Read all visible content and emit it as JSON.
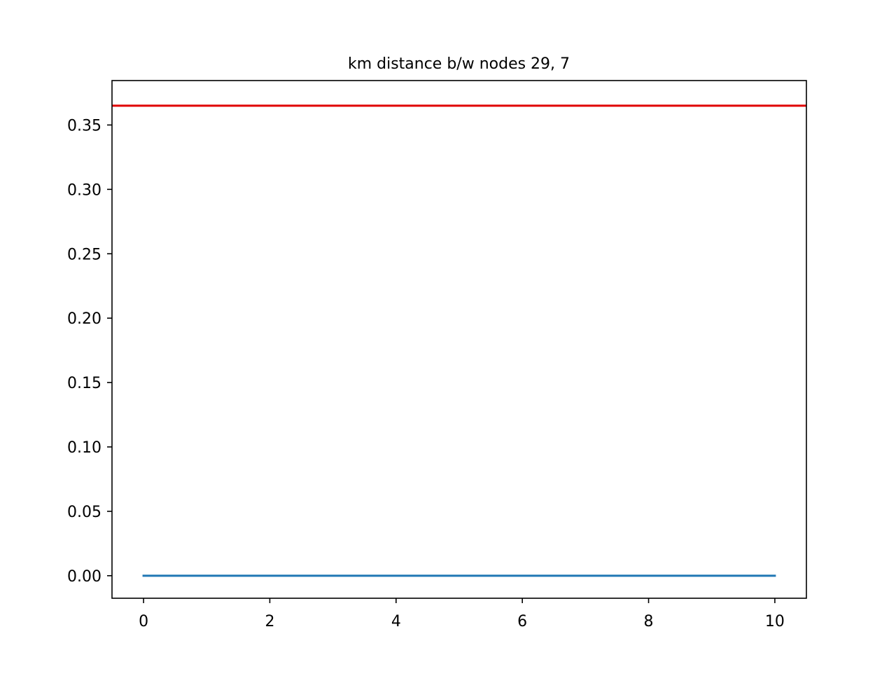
{
  "chart_data": {
    "type": "line",
    "title": "km distance b/w nodes 29, 7",
    "xlabel": "",
    "ylabel": "",
    "xlim": [
      -0.5,
      10.5
    ],
    "ylim": [
      -0.0175,
      0.3845
    ],
    "x_ticks": [
      0,
      2,
      4,
      6,
      8,
      10
    ],
    "x_tick_labels": [
      "0",
      "2",
      "4",
      "6",
      "8",
      "10"
    ],
    "y_ticks": [
      0.0,
      0.05,
      0.1,
      0.15,
      0.2,
      0.25,
      0.3,
      0.35
    ],
    "y_tick_labels": [
      "0.00",
      "0.05",
      "0.10",
      "0.15",
      "0.20",
      "0.25",
      "0.30",
      "0.35"
    ],
    "grid": false,
    "legend": "none",
    "series": [
      {
        "color": "#1f77b4",
        "x": [
          0,
          1,
          2,
          3,
          4,
          5,
          6,
          7,
          8,
          9,
          10
        ],
        "y": [
          0,
          0,
          0,
          0,
          0,
          0,
          0,
          0,
          0,
          0,
          0
        ]
      }
    ],
    "hlines": [
      {
        "y": 0.365,
        "color": "#e00000"
      }
    ]
  }
}
